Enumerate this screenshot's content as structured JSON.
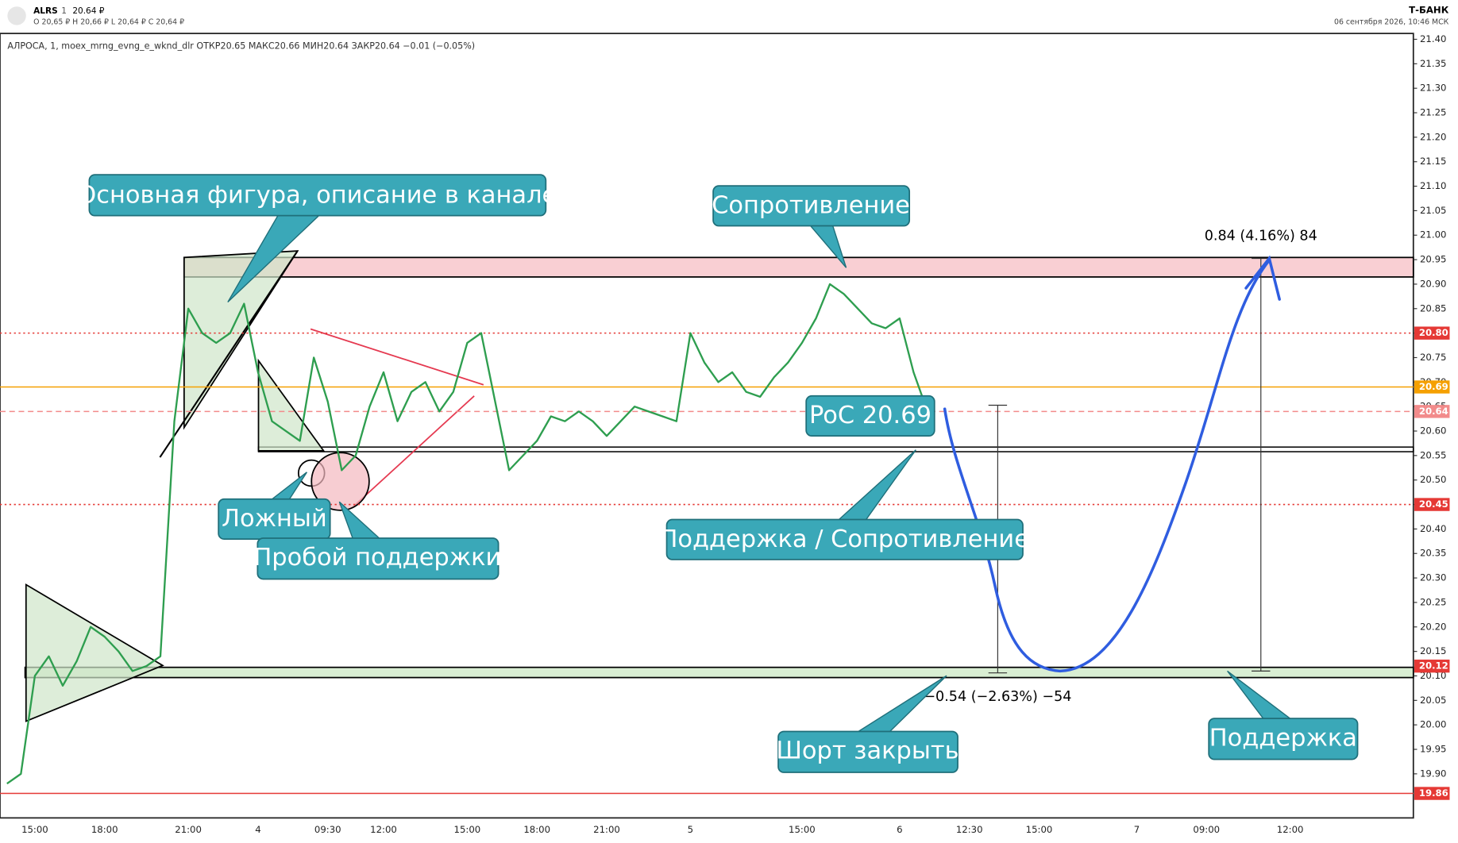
{
  "header": {
    "ticker": "ALRS",
    "interval": "1",
    "price": "20.64 ₽",
    "ohlc": "O 20,65 ₽  H 20,66 ₽  L 20,64 ₽  C 20,64 ₽",
    "brand": "Т-БАНК",
    "datetime": "06 сентября 2026, 10:46 МСК"
  },
  "chart_data": {
    "type": "line",
    "legend_text": "АЛРОСА, 1, moex_mrng_evng_e_wknd_dlr  ОТКР20.65  МАКС20.66  МИН20.64  ЗАКР20.64  −0.01 (−0.05%)",
    "categories": [
      null,
      null,
      "15:00",
      null,
      null,
      null,
      null,
      "18:00",
      null,
      null,
      null,
      null,
      null,
      "21:00",
      null,
      null,
      null,
      null,
      "4",
      null,
      null,
      null,
      null,
      "09:30",
      null,
      null,
      null,
      "12:00",
      null,
      null,
      null,
      null,
      null,
      "15:00",
      null,
      null,
      null,
      null,
      "18:00",
      null,
      null,
      null,
      null,
      "21:00",
      null,
      null,
      null,
      null,
      null,
      "5",
      null,
      null,
      null,
      null,
      null,
      null,
      null,
      "15:00",
      null,
      null,
      null,
      null,
      null,
      null,
      "6",
      null,
      null,
      null,
      null,
      "12:30",
      null,
      null,
      null,
      null,
      "15:00",
      null,
      null,
      null,
      null,
      null,
      null,
      "7",
      null,
      null,
      null,
      null,
      "09:00",
      null,
      null,
      null,
      null,
      null,
      "12:00",
      null,
      null,
      null,
      null,
      null,
      null,
      null,
      null
    ],
    "series": [
      {
        "name": "АЛРОСА",
        "color": "#2e9e4f",
        "values": [
          19.88,
          19.9,
          20.1,
          20.14,
          20.08,
          20.13,
          20.2,
          20.18,
          20.15,
          20.11,
          20.12,
          20.14,
          20.62,
          20.85,
          20.8,
          20.78,
          20.8,
          20.86,
          20.72,
          20.62,
          20.6,
          20.58,
          20.75,
          20.66,
          20.52,
          20.55,
          20.65,
          20.72,
          20.62,
          20.68,
          20.7,
          20.64,
          20.68,
          20.78,
          20.8,
          20.66,
          20.52,
          20.55,
          20.58,
          20.63,
          20.62,
          20.64,
          20.62,
          20.59,
          20.62,
          20.65,
          20.64,
          20.63,
          20.62,
          20.8,
          20.74,
          20.7,
          20.72,
          20.68,
          20.67,
          20.71,
          20.74,
          20.78,
          20.83,
          20.9,
          20.88,
          20.85,
          20.82,
          20.81,
          20.83,
          20.72,
          20.64,
          null,
          null,
          null,
          null,
          null,
          null,
          null,
          null,
          null,
          null,
          null,
          null,
          null,
          null,
          null,
          null,
          null,
          null,
          null,
          null,
          null,
          null,
          null,
          null,
          null,
          null,
          null,
          null,
          null,
          null,
          null,
          null,
          null,
          null
        ]
      }
    ],
    "ylim": [
      19.81,
      21.41
    ],
    "yticks": [
      {
        "value": 19.9,
        "label": "19.90"
      },
      {
        "value": 19.95,
        "label": "19.95"
      },
      {
        "value": 20,
        "label": "20.00"
      },
      {
        "value": 20.05,
        "label": "20.05"
      },
      {
        "value": 20.1,
        "label": "20.10"
      },
      {
        "value": 20.15,
        "label": "20.15"
      },
      {
        "value": 20.2,
        "label": "20.20"
      },
      {
        "value": 20.25,
        "label": "20.25"
      },
      {
        "value": 20.3,
        "label": "20.30"
      },
      {
        "value": 20.35,
        "label": "20.35"
      },
      {
        "value": 20.4,
        "label": "20.40"
      },
      {
        "value": 20.45,
        "label": "20.45"
      },
      {
        "value": 20.5,
        "label": "20.50"
      },
      {
        "value": 20.55,
        "label": "20.55"
      },
      {
        "value": 20.6,
        "label": "20.60"
      },
      {
        "value": 20.65,
        "label": "20.65"
      },
      {
        "value": 20.7,
        "label": "20.70"
      },
      {
        "value": 20.75,
        "label": "20.75"
      },
      {
        "value": 20.8,
        "label": "20.80"
      },
      {
        "value": 20.85,
        "label": "20.85"
      },
      {
        "value": 20.9,
        "label": "20.90"
      },
      {
        "value": 20.95,
        "label": "20.95"
      },
      {
        "value": 21,
        "label": "21.00"
      },
      {
        "value": 21.05,
        "label": "21.05"
      },
      {
        "value": 21.1,
        "label": "21.10"
      },
      {
        "value": 21.15,
        "label": "21.15"
      },
      {
        "value": 21.2,
        "label": "21.20"
      },
      {
        "value": 21.25,
        "label": "21.25"
      },
      {
        "value": 21.3,
        "label": "21.30"
      },
      {
        "value": 21.35,
        "label": "21.35"
      },
      {
        "value": 21.4,
        "label": "21.40"
      }
    ],
    "grid": false,
    "levels": [
      {
        "value": 20.8,
        "label": "20.80",
        "color": "#e53935",
        "style": "dotted"
      },
      {
        "value": 20.69,
        "label": "20.69",
        "color": "#f5a000",
        "style": "solid"
      },
      {
        "value": 20.64,
        "label": "20.64",
        "color": "#f28b8b",
        "style": "dashed"
      },
      {
        "value": 20.45,
        "label": "20.45",
        "color": "#e53935",
        "style": "dotted"
      },
      {
        "value": 20.12,
        "label": "20.12",
        "color": "#e53935",
        "style": "none"
      },
      {
        "value": 19.86,
        "label": "19.86",
        "color": "#e53935",
        "style": "solid"
      }
    ],
    "annotations": [
      "Основная фигура, описание в канале",
      "Сопротивление",
      "PoC 20.69",
      "Ложный",
      "Пробой поддержки",
      "Поддержка / Сопротивление",
      "Шорт закрыть",
      "Поддержка",
      "0.84 (4.16%) 84",
      "−0.54 (−2.63%) −54"
    ]
  }
}
